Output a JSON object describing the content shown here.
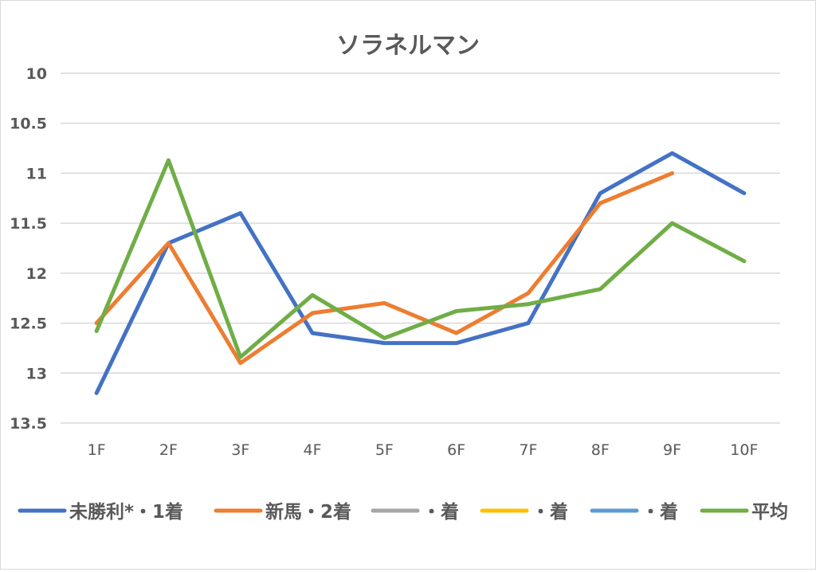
{
  "chart_data": {
    "type": "line",
    "title": "ソラネルマン",
    "xlabel": "",
    "ylabel": "",
    "categories": [
      "1F",
      "2F",
      "3F",
      "4F",
      "5F",
      "6F",
      "7F",
      "8F",
      "9F",
      "10F"
    ],
    "ylim": [
      10,
      13.5
    ],
    "y_reversed": true,
    "yticks": [
      "10",
      "10.5",
      "11",
      "11.5",
      "12",
      "12.5",
      "13",
      "13.5"
    ],
    "grid": true,
    "legend_position": "bottom",
    "series": [
      {
        "name": "未勝利*・1着",
        "color": "#4472c4",
        "values": [
          13.2,
          11.7,
          11.4,
          12.6,
          12.7,
          12.7,
          12.5,
          11.2,
          10.8,
          11.2
        ]
      },
      {
        "name": "新馬・2着",
        "color": "#ed7d31",
        "values": [
          12.5,
          11.7,
          12.9,
          12.4,
          12.3,
          12.6,
          12.2,
          11.3,
          11.0,
          null
        ]
      },
      {
        "name": "・着",
        "color": "#a5a5a5",
        "values": [
          null,
          null,
          null,
          null,
          null,
          null,
          null,
          null,
          null,
          null
        ]
      },
      {
        "name": "・着",
        "color": "#ffc000",
        "values": [
          null,
          null,
          null,
          null,
          null,
          null,
          null,
          null,
          null,
          null
        ]
      },
      {
        "name": "・着",
        "color": "#5b9bd5",
        "values": [
          null,
          null,
          null,
          null,
          null,
          null,
          null,
          null,
          null,
          null
        ]
      },
      {
        "name": "平均",
        "color": "#70ad47",
        "values": [
          12.58,
          10.87,
          12.84,
          12.22,
          12.65,
          12.38,
          12.31,
          12.16,
          11.5,
          11.88
        ]
      }
    ]
  }
}
